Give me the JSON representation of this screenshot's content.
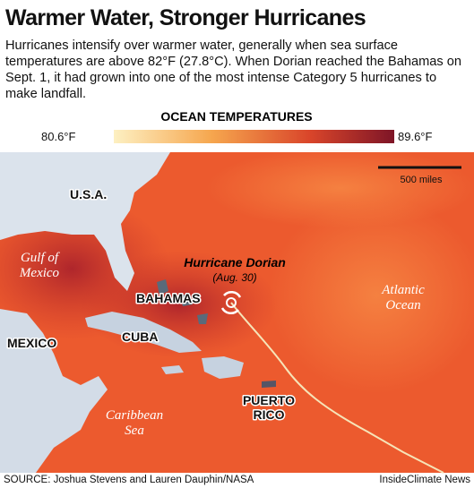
{
  "header": {
    "title": "Warmer Water, Stronger Hurricanes",
    "description": "Hurricanes intensify over warmer water, generally when sea surface temperatures are above 82°F (27.8°C). When Dorian reached the Bahamas on Sept. 1, it had grown into one of the most intense Category 5 hurricanes to make landfall."
  },
  "legend": {
    "title": "OCEAN TEMPERATURES",
    "min_label": "80.6°F",
    "max_label": "89.6°F"
  },
  "map": {
    "scale_label": "500 miles",
    "labels": {
      "usa": "U.S.A.",
      "gulf": [
        "Gulf of",
        "Mexico"
      ],
      "bahamas": "BAHAMAS",
      "cuba": "CUBA",
      "mexico": "MEXICO",
      "hurricane": [
        "Hurricane Dorian",
        "(Aug. 30)"
      ],
      "atlantic": [
        "Atlantic",
        "Ocean"
      ],
      "caribbean": [
        "Caribbean",
        "Sea"
      ],
      "puerto_rico": [
        "PUERTO",
        "RICO"
      ]
    }
  },
  "footer": {
    "source": "SOURCE: Joshua Stevens and Lauren Dauphin/NASA",
    "credit": "InsideClimate News"
  }
}
